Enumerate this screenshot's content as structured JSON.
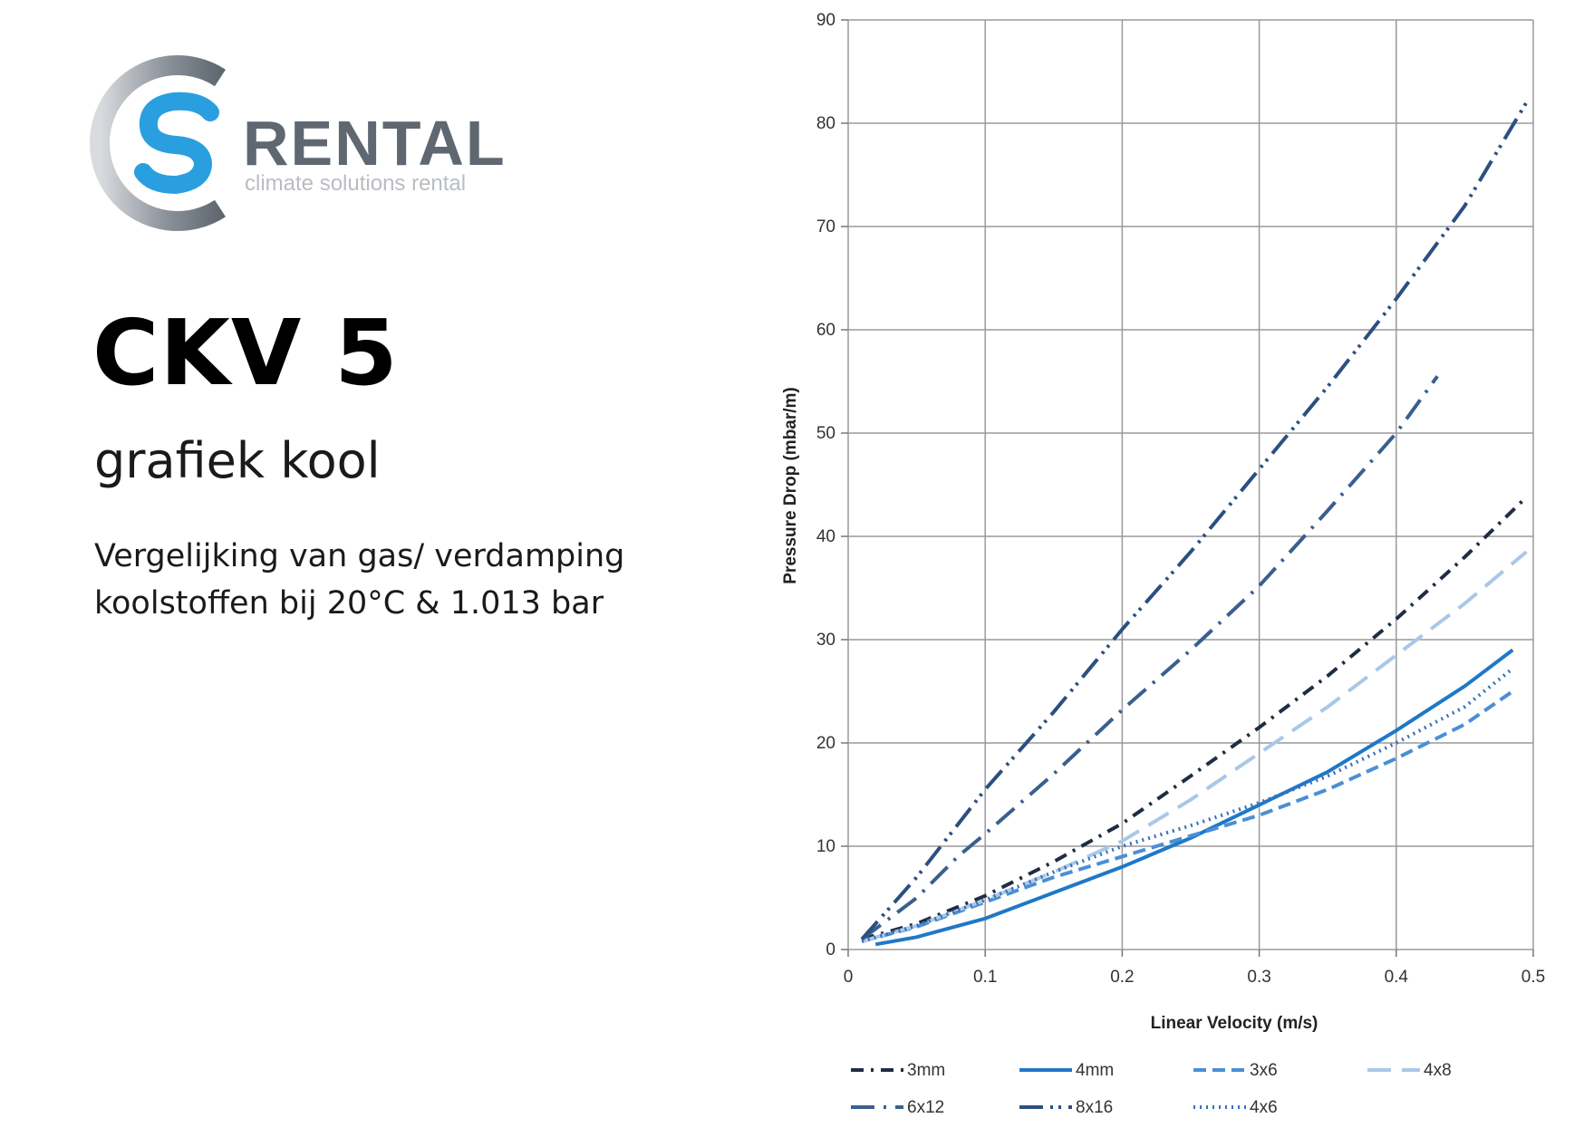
{
  "brand": {
    "name": "RENTAL",
    "tagline": "climate solutions rental",
    "colors": {
      "blue": "#2a9fe0",
      "grey": "#5f6770",
      "light_grey": "#b9bdc2"
    }
  },
  "product": {
    "title": "CKV 5",
    "subtitle": "grafiek kool",
    "description_line1": "Vergelijking van gas/ verdamping",
    "description_line2": "koolstoffen bij 20°C & 1.013 bar"
  },
  "chart_data": {
    "type": "line",
    "title": "",
    "xlabel": "Linear Velocity (m/s)",
    "ylabel": "Pressure Drop  (mbar/m)",
    "xlim": [
      0,
      0.5
    ],
    "ylim": [
      0,
      90
    ],
    "xticks": [
      "0",
      "0.1",
      "0.2",
      "0.3",
      "0.4",
      "0.5"
    ],
    "yticks": [
      "0",
      "10",
      "20",
      "30",
      "40",
      "50",
      "60",
      "70",
      "80",
      "90"
    ],
    "grid": true,
    "legend_position": "bottom",
    "series": [
      {
        "name": "3mm",
        "color": "#1f2d44",
        "dash": "dashdot",
        "x": [
          0.01,
          0.05,
          0.1,
          0.15,
          0.2,
          0.25,
          0.3,
          0.35,
          0.4,
          0.45,
          0.495
        ],
        "y": [
          1,
          2.5,
          5.2,
          8.5,
          12.2,
          16.8,
          21.5,
          26.5,
          32,
          38,
          43.8
        ]
      },
      {
        "name": "4mm",
        "color": "#1f78c8",
        "dash": "solid",
        "x": [
          0.02,
          0.05,
          0.1,
          0.15,
          0.2,
          0.25,
          0.3,
          0.35,
          0.4,
          0.45,
          0.485
        ],
        "y": [
          0.5,
          1.2,
          3,
          5.5,
          8,
          10.8,
          14,
          17.2,
          21.2,
          25.5,
          29
        ]
      },
      {
        "name": "3x6",
        "color": "#4a8fd6",
        "dash": "dash",
        "x": [
          0.01,
          0.05,
          0.1,
          0.15,
          0.2,
          0.25,
          0.3,
          0.35,
          0.4,
          0.45,
          0.485
        ],
        "y": [
          0.8,
          2.2,
          4.6,
          7,
          9,
          11,
          13,
          15.5,
          18.5,
          21.8,
          25
        ]
      },
      {
        "name": "4x8",
        "color": "#a9c8e8",
        "dash": "longdash",
        "x": [
          0.01,
          0.05,
          0.1,
          0.15,
          0.2,
          0.25,
          0.3,
          0.35,
          0.4,
          0.45,
          0.495
        ],
        "y": [
          0.8,
          2.3,
          4.8,
          7.5,
          10.5,
          14.5,
          19,
          23.5,
          28.5,
          33.5,
          38.5
        ]
      },
      {
        "name": "6x12",
        "color": "#3a5f8f",
        "dash": "longdashdot",
        "x": [
          0.01,
          0.05,
          0.08,
          0.1,
          0.15,
          0.2,
          0.25,
          0.3,
          0.35,
          0.4,
          0.43
        ],
        "y": [
          1,
          5,
          9,
          11.2,
          17,
          23.2,
          29,
          35.2,
          42.5,
          50,
          55.5
        ]
      },
      {
        "name": "8x16",
        "color": "#2b4f80",
        "dash": "longdashdotdot",
        "x": [
          0.01,
          0.05,
          0.1,
          0.15,
          0.2,
          0.25,
          0.3,
          0.35,
          0.4,
          0.45,
          0.495
        ],
        "y": [
          1,
          7,
          15.5,
          23,
          31,
          38.5,
          46.5,
          54.5,
          63,
          72,
          82
        ]
      },
      {
        "name": "4x6",
        "color": "#3a6fb8",
        "dash": "dot",
        "x": [
          0.01,
          0.05,
          0.1,
          0.15,
          0.2,
          0.25,
          0.3,
          0.35,
          0.4,
          0.45,
          0.485
        ],
        "y": [
          0.8,
          2.3,
          4.8,
          7.5,
          10,
          12,
          14.2,
          16.8,
          20,
          23.5,
          27.2
        ]
      }
    ]
  }
}
